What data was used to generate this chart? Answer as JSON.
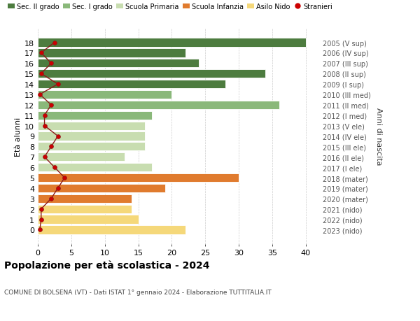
{
  "ages": [
    0,
    1,
    2,
    3,
    4,
    5,
    6,
    7,
    8,
    9,
    10,
    11,
    12,
    13,
    14,
    15,
    16,
    17,
    18
  ],
  "values": [
    22,
    15,
    14,
    14,
    19,
    30,
    17,
    13,
    16,
    16,
    16,
    17,
    36,
    20,
    28,
    34,
    24,
    22,
    40
  ],
  "bar_colors": [
    "#f5d87a",
    "#f5d87a",
    "#f5d87a",
    "#e07b2e",
    "#e07b2e",
    "#e07b2e",
    "#c8ddb0",
    "#c8ddb0",
    "#c8ddb0",
    "#c8ddb0",
    "#c8ddb0",
    "#8ab87a",
    "#8ab87a",
    "#8ab87a",
    "#4d7c3f",
    "#4d7c3f",
    "#4d7c3f",
    "#4d7c3f",
    "#4d7c3f"
  ],
  "stranieri_values": [
    0.3,
    0.5,
    0.5,
    2.0,
    3.0,
    4.0,
    2.5,
    1.0,
    2.0,
    3.0,
    1.0,
    1.0,
    2.0,
    0.3,
    3.0,
    0.5,
    2.0,
    0.5,
    2.5
  ],
  "right_labels": [
    "2023 (nido)",
    "2022 (nido)",
    "2021 (nido)",
    "2020 (mater)",
    "2019 (mater)",
    "2018 (mater)",
    "2017 (I ele)",
    "2016 (II ele)",
    "2015 (III ele)",
    "2014 (IV ele)",
    "2013 (V ele)",
    "2012 (I med)",
    "2011 (II med)",
    "2010 (III med)",
    "2009 (I sup)",
    "2008 (II sup)",
    "2007 (III sup)",
    "2006 (IV sup)",
    "2005 (V sup)"
  ],
  "ylabel": "Età alunni",
  "ylabel_right": "Anni di nascita",
  "title": "Popolazione per età scolastica - 2024",
  "subtitle": "COMUNE DI BOLSENA (VT) - Dati ISTAT 1° gennaio 2024 - Elaborazione TUTTITALIA.IT",
  "xlim": [
    0,
    42
  ],
  "xticks": [
    0,
    5,
    10,
    15,
    20,
    25,
    30,
    35,
    40
  ],
  "legend_labels": [
    "Sec. II grado",
    "Sec. I grado",
    "Scuola Primaria",
    "Scuola Infanzia",
    "Asilo Nido",
    "Stranieri"
  ],
  "legend_colors": [
    "#4d7c3f",
    "#8ab87a",
    "#c8ddb0",
    "#e07b2e",
    "#f5d87a",
    "#cc0000"
  ],
  "background_color": "#ffffff",
  "grid_color": "#cccccc"
}
